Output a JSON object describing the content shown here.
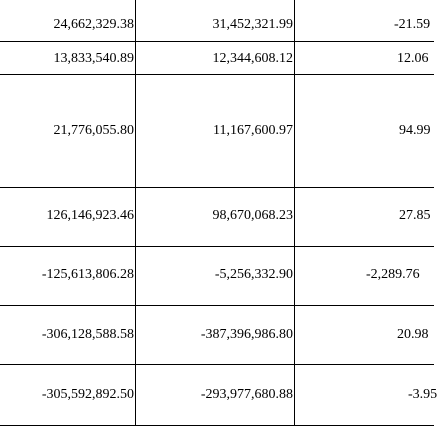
{
  "rows": [
    {
      "c1": "24,662,329.38",
      "c2": "31,452,321.99",
      "c3": "-21.59"
    },
    {
      "c1": "13,833,540.89",
      "c2": "12,344,608.12",
      "c3": "12.06"
    },
    {
      "c1": "21,776,055.80",
      "c2": "11,167,600.97",
      "c3": "94.99"
    },
    {
      "c1": "126,146,923.46",
      "c2": "98,670,068.23",
      "c3": "27.85"
    },
    {
      "c1": "-125,613,806.28",
      "c2": "-5,256,332.90",
      "c3": "-2,289.76"
    },
    {
      "c1": "-306,128,588.58",
      "c2": "-387,396,986.80",
      "c3": "20.98"
    },
    {
      "c1": "-305,592,892.50",
      "c2": "-293,977,680.88",
      "c3": "-3.95"
    }
  ]
}
